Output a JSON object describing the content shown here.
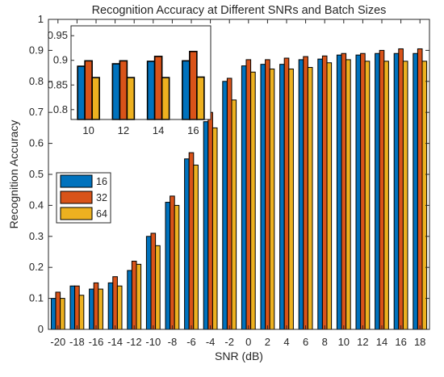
{
  "chart_data": [
    {
      "type": "bar",
      "title": "Recognition Accuracy at Different SNRs and Batch Sizes",
      "xlabel": "SNR (dB)",
      "ylabel": "Recognition Accuracy",
      "ylim": [
        0,
        1
      ],
      "yticks": [
        "0",
        "0.1",
        "0.2",
        "0.3",
        "0.4",
        "0.5",
        "0.6",
        "0.7",
        "0.8",
        "0.9",
        "1"
      ],
      "categories": [
        "-20",
        "-18",
        "-16",
        "-14",
        "-12",
        "-10",
        "-8",
        "-6",
        "-4",
        "-2",
        "0",
        "2",
        "4",
        "6",
        "8",
        "10",
        "12",
        "14",
        "16",
        "18"
      ],
      "series": [
        {
          "name": "16",
          "color": "#0072BD",
          "values": [
            0.1,
            0.14,
            0.13,
            0.15,
            0.19,
            0.3,
            0.41,
            0.55,
            0.67,
            0.8,
            0.85,
            0.855,
            0.855,
            0.87,
            0.872,
            0.885,
            0.885,
            0.89,
            0.89,
            0.89
          ]
        },
        {
          "name": "32",
          "color": "#D95319",
          "values": [
            0.12,
            0.14,
            0.15,
            0.17,
            0.22,
            0.31,
            0.43,
            0.57,
            0.7,
            0.81,
            0.87,
            0.87,
            0.875,
            0.88,
            0.882,
            0.89,
            0.89,
            0.9,
            0.905,
            0.905
          ]
        },
        {
          "name": "64",
          "color": "#EDB120",
          "values": [
            0.1,
            0.11,
            0.13,
            0.14,
            0.21,
            0.27,
            0.4,
            0.53,
            0.65,
            0.74,
            0.83,
            0.84,
            0.84,
            0.845,
            0.86,
            0.87,
            0.865,
            0.865,
            0.865,
            0.865
          ]
        }
      ],
      "grid": false,
      "legend_position": "middle-left"
    },
    {
      "type": "bar",
      "categories": [
        "10",
        "12",
        "14",
        "16"
      ],
      "ylim": [
        0.78,
        0.97
      ],
      "yticks": [
        "0.8",
        "0.85",
        "0.9",
        "0.95"
      ],
      "series": [
        {
          "name": "16",
          "color": "#0072BD",
          "values": [
            0.888,
            0.893,
            0.898,
            0.899
          ]
        },
        {
          "name": "32",
          "color": "#D95319",
          "values": [
            0.899,
            0.899,
            0.908,
            0.918
          ]
        },
        {
          "name": "64",
          "color": "#EDB120",
          "values": [
            0.865,
            0.865,
            0.865,
            0.866
          ]
        }
      ]
    }
  ]
}
